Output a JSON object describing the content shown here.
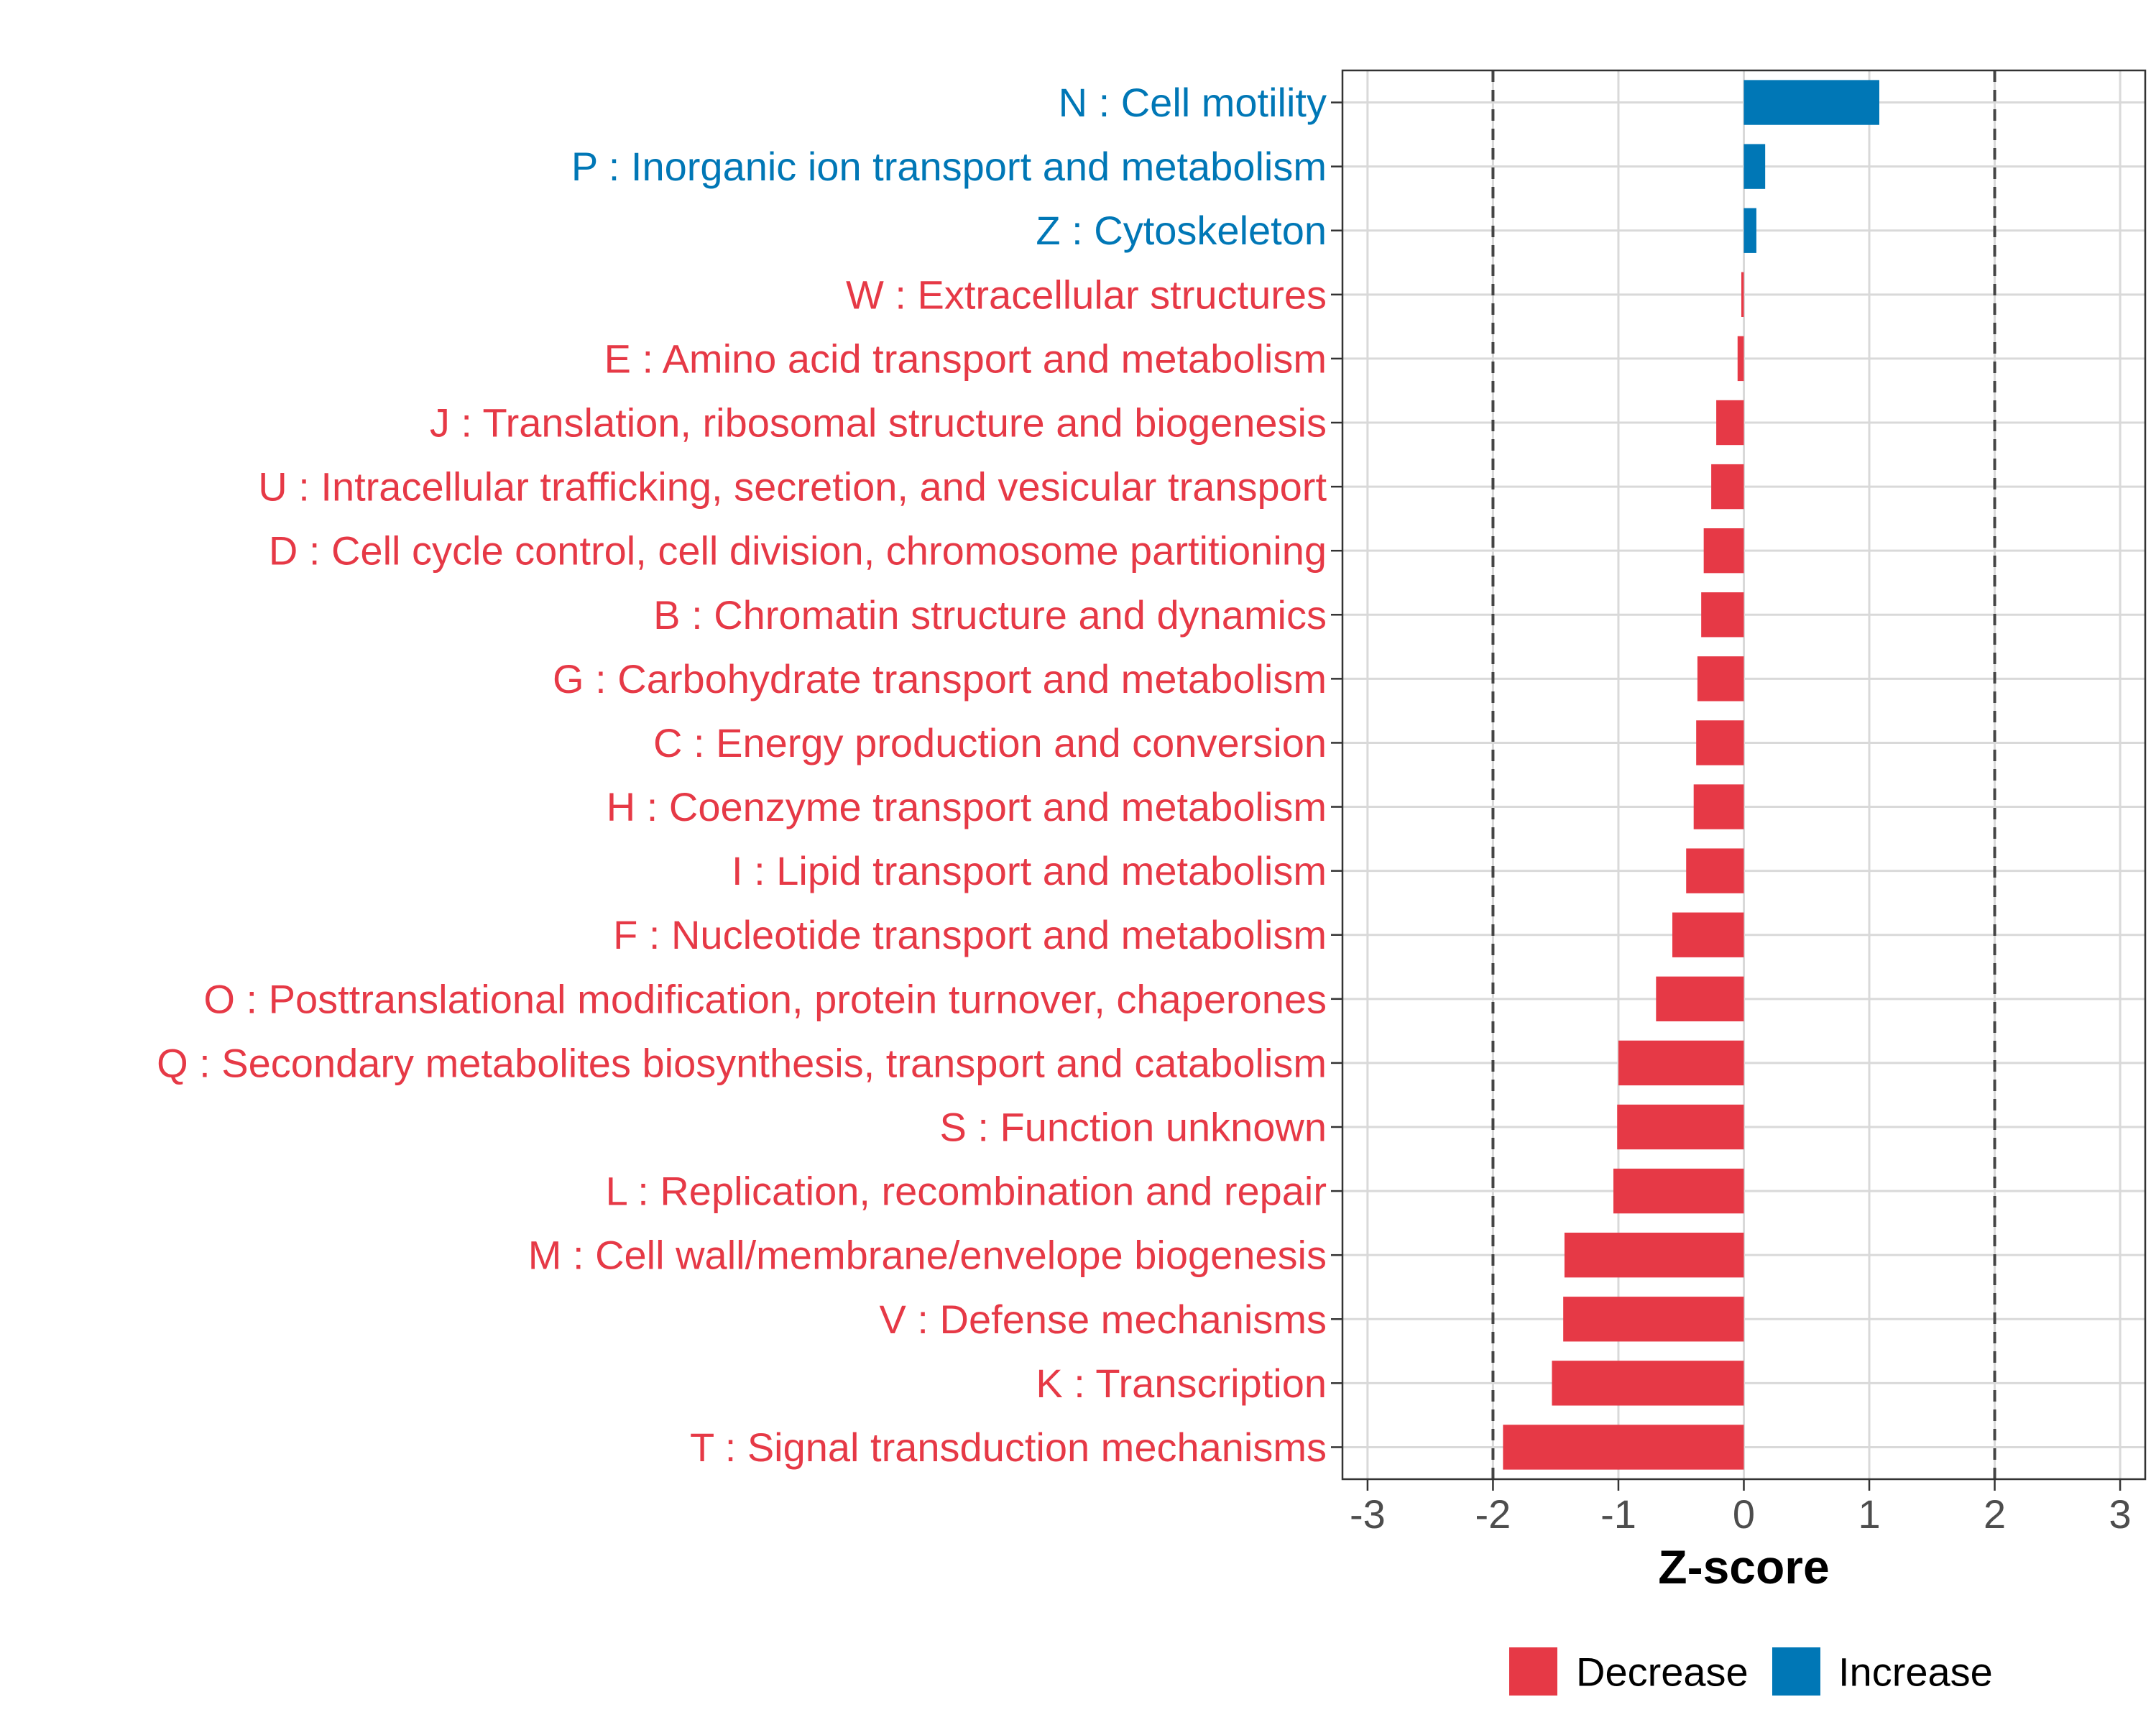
{
  "chart_data": {
    "type": "bar",
    "orientation": "horizontal",
    "title": "",
    "xlabel": "Z-score",
    "ylabel": "",
    "xlim": [
      -3.2,
      3.2
    ],
    "xticks": [
      -3,
      -2,
      -1,
      0,
      1,
      2,
      3
    ],
    "xtick_labels": [
      "-3",
      "-2",
      "-1",
      "0",
      "1",
      "2",
      "3"
    ],
    "reference_lines": [
      -2,
      2
    ],
    "grid": true,
    "legend_position": "bottom",
    "colors": {
      "Decrease": "#e63946",
      "Increase": "#0077b6"
    },
    "legend": [
      {
        "label": "Decrease",
        "color": "#e63946"
      },
      {
        "label": "Increase",
        "color": "#0077b6"
      }
    ],
    "categories": [
      "N : Cell motility",
      "P : Inorganic ion transport and metabolism",
      "Z : Cytoskeleton",
      "W : Extracellular structures",
      "E : Amino acid transport and metabolism",
      "J : Translation, ribosomal structure and biogenesis",
      "U : Intracellular trafficking, secretion, and vesicular transport",
      "D : Cell cycle control, cell division, chromosome partitioning",
      "B : Chromatin structure and dynamics",
      "G : Carbohydrate transport and metabolism",
      "C : Energy production and conversion",
      "H : Coenzyme transport and metabolism",
      "I : Lipid transport and metabolism",
      "F : Nucleotide transport and metabolism",
      "O : Posttranslational modification, protein turnover, chaperones",
      "Q : Secondary metabolites biosynthesis, transport and catabolism",
      "S : Function unknown",
      "L : Replication, recombination and repair",
      "M : Cell wall/membrane/envelope biogenesis",
      "V : Defense mechanisms",
      "K : Transcription",
      "T : Signal transduction mechanisms"
    ],
    "values": [
      1.08,
      0.17,
      0.1,
      -0.02,
      -0.05,
      -0.22,
      -0.26,
      -0.32,
      -0.34,
      -0.37,
      -0.38,
      -0.4,
      -0.46,
      -0.57,
      -0.7,
      -1.0,
      -1.01,
      -1.04,
      -1.43,
      -1.44,
      -1.53,
      -1.92
    ],
    "direction": [
      "Increase",
      "Increase",
      "Increase",
      "Decrease",
      "Decrease",
      "Decrease",
      "Decrease",
      "Decrease",
      "Decrease",
      "Decrease",
      "Decrease",
      "Decrease",
      "Decrease",
      "Decrease",
      "Decrease",
      "Decrease",
      "Decrease",
      "Decrease",
      "Decrease",
      "Decrease",
      "Decrease",
      "Decrease"
    ]
  }
}
